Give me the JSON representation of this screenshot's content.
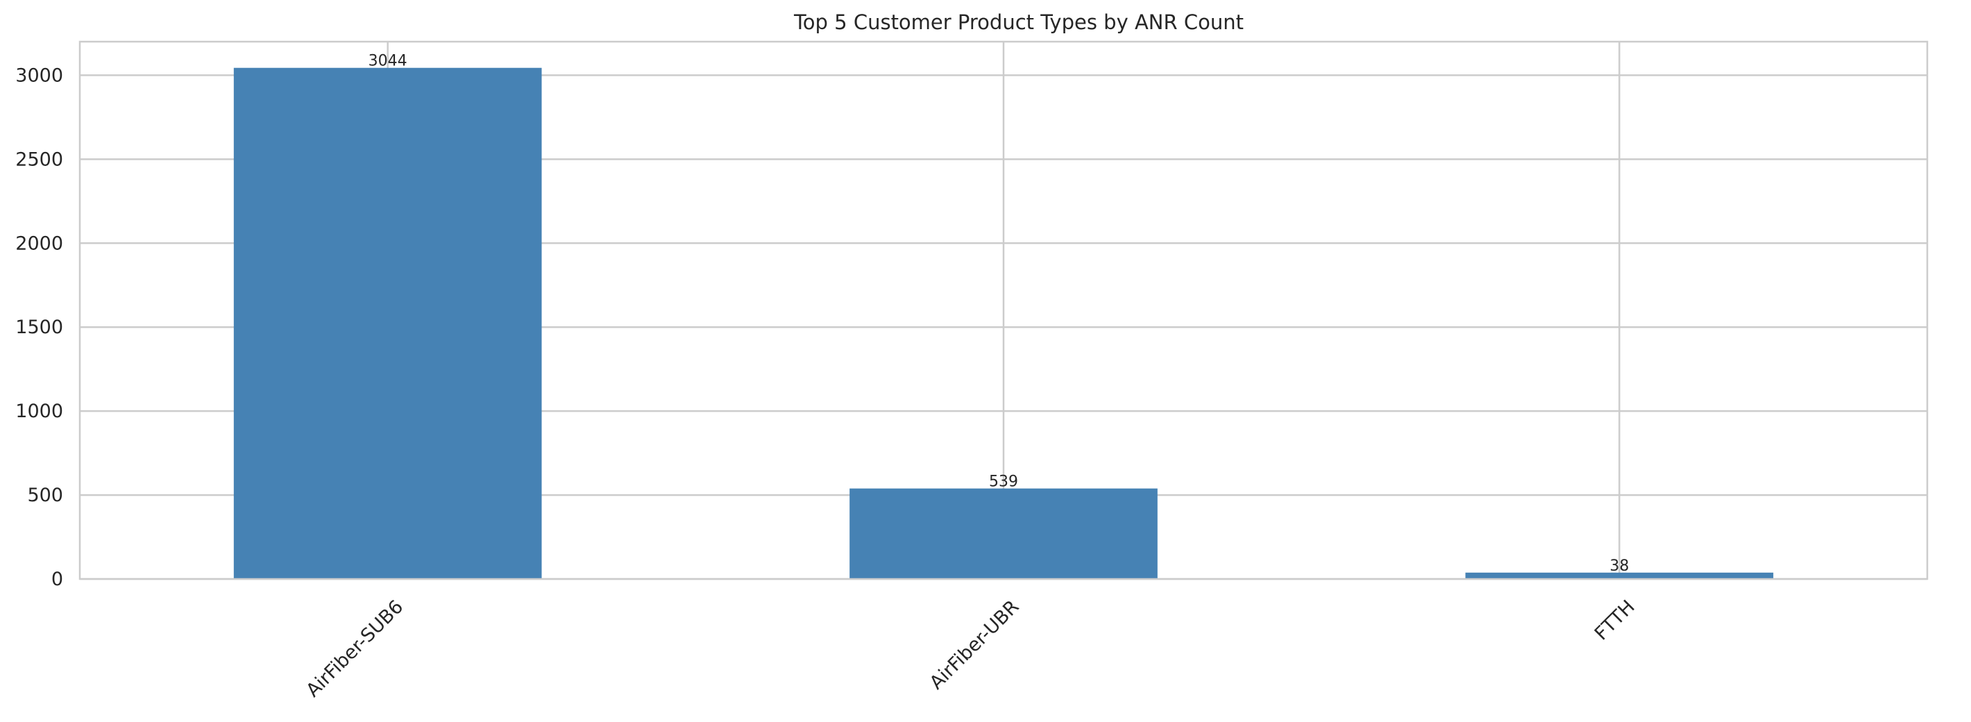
{
  "chart_data": {
    "type": "bar",
    "title": "Top 5 Customer Product Types by ANR Count",
    "xlabel": "",
    "ylabel": "",
    "categories": [
      "AirFiber-SUB6",
      "AirFiber-UBR",
      "FTTH"
    ],
    "values": [
      3044,
      539,
      38
    ],
    "data_labels": [
      "3044",
      "539",
      "38"
    ],
    "ylim": [
      0,
      3200
    ],
    "yticks": [
      0,
      500,
      1000,
      1500,
      2000,
      2500,
      3000
    ],
    "ytick_labels": [
      "0",
      "500",
      "1000",
      "1500",
      "2000",
      "2500",
      "3000"
    ],
    "grid": true,
    "legend": "none",
    "bar_color": "#4682b4",
    "grid_color": "#cccccc",
    "axes_edge_color": "#cccccc",
    "text_color": "#262626"
  }
}
